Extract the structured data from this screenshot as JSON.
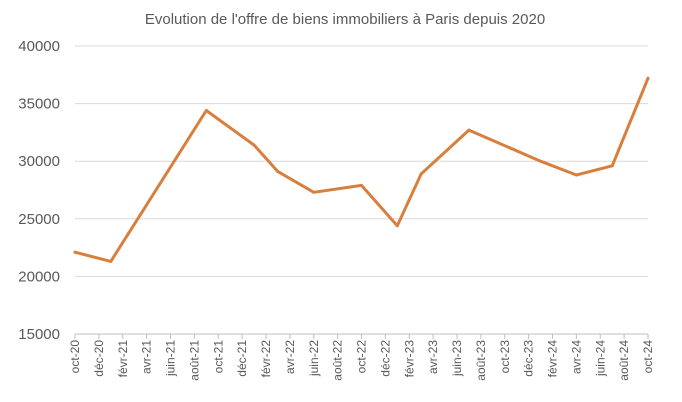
{
  "chart_data": {
    "type": "line",
    "title": "Evolution de l'offre de biens immobiliers à Paris depuis 2020",
    "xlabel": "",
    "ylabel": "",
    "ylim": [
      15000,
      40000
    ],
    "yticks": [
      "15000",
      "20000",
      "25000",
      "30000",
      "35000",
      "40000"
    ],
    "xlim": [
      "2020-10",
      "2024-10"
    ],
    "xticks": [
      "oct-20",
      "déc-20",
      "févr-21",
      "avr-21",
      "juin-21",
      "août-21",
      "oct-21",
      "déc-21",
      "févr-22",
      "avr-22",
      "juin-22",
      "août-22",
      "oct-22",
      "déc-22",
      "févr-23",
      "avr-23",
      "juin-23",
      "août-23",
      "oct-23",
      "déc-23",
      "févr-24",
      "avr-24",
      "juin-24",
      "août-24",
      "oct-24"
    ],
    "grid": true,
    "legend": "none",
    "color": "#D97F3E",
    "series": [
      {
        "x": [
          "2020-10",
          "2021-01",
          "2021-09",
          "2022-01",
          "2022-03",
          "2022-06",
          "2022-10",
          "2023-01",
          "2023-03",
          "2023-07",
          "2024-01",
          "2024-04",
          "2024-07",
          "2024-10"
        ],
        "values": [
          22100,
          21300,
          34400,
          31400,
          29100,
          27300,
          27900,
          24400,
          28900,
          32700,
          30000,
          28800,
          29600,
          37200
        ]
      }
    ]
  }
}
